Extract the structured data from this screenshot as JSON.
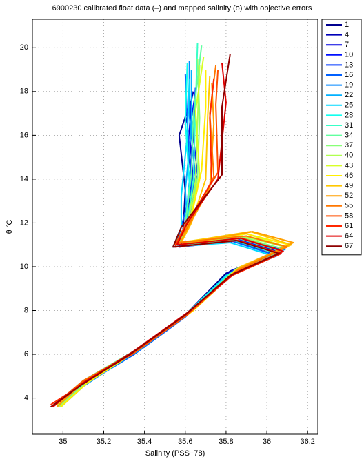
{
  "chart_data": {
    "type": "line",
    "title": "6900230 calibrated float data (–) and mapped salinity (o) with objective errors",
    "x_label": "Salinity (PSS−78)",
    "y_label": "θ ˚C",
    "xlim": [
      34.85,
      36.25
    ],
    "ylim": [
      2.35,
      21.3
    ],
    "xticks": [
      35,
      35.2,
      35.4,
      35.6,
      35.8,
      36,
      36.2
    ],
    "yticks": [
      4,
      6,
      8,
      10,
      12,
      14,
      16,
      18,
      20
    ],
    "grid": true,
    "legend": "outside-right",
    "series": [
      {
        "name": "1",
        "color": "#00008f",
        "x": [
          34.98,
          35.1,
          35.34,
          35.6,
          35.8,
          36.02,
          35.83,
          35.58,
          35.59,
          35.6,
          35.57,
          35.62
        ],
        "values": [
          3.7,
          4.7,
          6.0,
          7.8,
          9.7,
          10.6,
          11.2,
          11.0,
          11.8,
          13.5,
          16.0,
          17.4
        ]
      },
      {
        "name": "4",
        "color": "#0000b8",
        "x": [
          34.99,
          35.11,
          35.35,
          35.62,
          35.82,
          36.06,
          35.86,
          35.56,
          35.61,
          35.63,
          35.6,
          35.64
        ],
        "values": [
          3.6,
          4.8,
          6.1,
          7.9,
          9.8,
          10.7,
          11.3,
          11.0,
          11.9,
          14.0,
          16.5,
          18.0
        ]
      },
      {
        "name": "7",
        "color": "#0000e0",
        "x": [
          34.97,
          35.09,
          35.33,
          35.61,
          35.85,
          36.08,
          35.88,
          35.57,
          35.6,
          35.64,
          35.62,
          35.63
        ],
        "values": [
          3.7,
          4.6,
          6.0,
          7.8,
          9.9,
          10.8,
          11.2,
          10.9,
          11.8,
          13.7,
          16.2,
          17.6
        ]
      },
      {
        "name": "10",
        "color": "#0010ff",
        "x": [
          34.98,
          35.1,
          35.36,
          35.63,
          35.84,
          36.07,
          35.85,
          35.55,
          35.62,
          35.66,
          35.63,
          35.66
        ],
        "values": [
          3.6,
          4.7,
          6.2,
          8.0,
          9.7,
          10.6,
          11.3,
          11.1,
          12.0,
          14.2,
          16.8,
          18.5
        ]
      },
      {
        "name": "13",
        "color": "#0038ff",
        "x": [
          34.96,
          35.1,
          35.34,
          35.62,
          35.83,
          36.04,
          35.84,
          35.56,
          35.6,
          35.62,
          35.64,
          35.65
        ],
        "values": [
          3.7,
          4.8,
          6.1,
          7.9,
          9.8,
          10.7,
          11.2,
          11.0,
          11.9,
          13.9,
          16.3,
          18.2
        ]
      },
      {
        "name": "16",
        "color": "#0060ff",
        "x": [
          34.99,
          35.12,
          35.35,
          35.6,
          35.81,
          36.05,
          35.82,
          35.55,
          35.58,
          35.63,
          35.61,
          35.6
        ],
        "values": [
          3.6,
          4.7,
          6.0,
          7.7,
          9.6,
          10.5,
          11.2,
          10.9,
          11.8,
          13.6,
          16.6,
          18.8
        ]
      },
      {
        "name": "19",
        "color": "#0088ff",
        "x": [
          34.98,
          35.11,
          35.37,
          35.64,
          35.86,
          36.09,
          35.87,
          35.56,
          35.6,
          35.65,
          35.62,
          35.62
        ],
        "values": [
          3.7,
          4.6,
          6.2,
          8.1,
          9.9,
          10.8,
          11.3,
          11.0,
          11.9,
          14.1,
          16.9,
          19.4
        ]
      },
      {
        "name": "22",
        "color": "#00b0ff",
        "x": [
          34.97,
          35.1,
          35.36,
          35.62,
          35.84,
          36.06,
          35.86,
          35.57,
          35.61,
          35.6,
          35.63,
          35.63
        ],
        "values": [
          3.6,
          4.8,
          6.1,
          7.9,
          9.7,
          10.6,
          11.2,
          11.1,
          12.0,
          13.5,
          16.4,
          19.0
        ]
      },
      {
        "name": "25",
        "color": "#00d8ff",
        "x": [
          34.98,
          35.12,
          35.34,
          35.6,
          35.8,
          36.03,
          35.82,
          35.54,
          35.58,
          35.58,
          35.61,
          35.62
        ],
        "values": [
          3.7,
          4.7,
          6.0,
          7.8,
          9.6,
          10.5,
          11.1,
          10.9,
          11.8,
          13.2,
          16.0,
          18.6
        ]
      },
      {
        "name": "28",
        "color": "#10ffef",
        "x": [
          34.99,
          35.11,
          35.35,
          35.61,
          35.82,
          36.05,
          35.84,
          35.55,
          35.6,
          35.62,
          35.6,
          35.61
        ],
        "values": [
          3.6,
          4.8,
          6.1,
          7.9,
          9.7,
          10.6,
          11.2,
          11.0,
          11.9,
          13.8,
          16.7,
          19.3
        ]
      },
      {
        "name": "31",
        "color": "#38ffc7",
        "x": [
          34.97,
          35.1,
          35.36,
          35.63,
          35.85,
          36.07,
          35.86,
          35.56,
          35.61,
          35.64,
          35.65,
          35.66
        ],
        "values": [
          3.7,
          4.7,
          6.2,
          8.0,
          9.8,
          10.7,
          11.3,
          11.1,
          12.0,
          14.0,
          17.2,
          20.2
        ]
      },
      {
        "name": "34",
        "color": "#60ff9f",
        "x": [
          34.98,
          35.11,
          35.35,
          35.62,
          35.83,
          36.06,
          35.85,
          35.55,
          35.6,
          35.63,
          35.64,
          35.68
        ],
        "values": [
          3.6,
          4.7,
          6.1,
          7.9,
          9.7,
          10.6,
          11.2,
          11.0,
          11.9,
          14.3,
          17.0,
          20.1
        ]
      },
      {
        "name": "37",
        "color": "#88ff77",
        "x": [
          34.96,
          35.1,
          35.34,
          35.62,
          35.84,
          36.08,
          35.86,
          35.57,
          35.62,
          35.66,
          35.67,
          35.66
        ],
        "values": [
          3.7,
          4.8,
          6.1,
          7.9,
          9.8,
          10.8,
          11.4,
          11.1,
          12.0,
          14.1,
          16.8,
          19.5
        ]
      },
      {
        "name": "40",
        "color": "#b0ff4f",
        "x": [
          34.98,
          35.12,
          35.36,
          35.63,
          35.85,
          36.09,
          35.88,
          35.56,
          35.61,
          35.65,
          35.66,
          35.67
        ],
        "values": [
          3.6,
          4.7,
          6.2,
          8.0,
          9.9,
          10.9,
          11.4,
          11.0,
          11.9,
          13.9,
          16.6,
          19.2
        ]
      },
      {
        "name": "43",
        "color": "#d8ff27",
        "x": [
          34.97,
          35.11,
          35.35,
          35.62,
          35.84,
          36.1,
          35.9,
          35.56,
          35.62,
          35.67,
          35.65,
          35.69
        ],
        "values": [
          3.7,
          4.8,
          6.1,
          7.9,
          9.8,
          10.9,
          11.5,
          11.1,
          12.0,
          14.2,
          17.1,
          19.6
        ]
      },
      {
        "name": "46",
        "color": "#ffef00",
        "x": [
          34.99,
          35.12,
          35.37,
          35.64,
          35.86,
          36.11,
          35.9,
          35.57,
          35.62,
          35.68,
          35.7,
          35.7
        ],
        "values": [
          3.6,
          4.7,
          6.2,
          8.0,
          9.9,
          11.0,
          11.5,
          11.0,
          11.9,
          14.4,
          17.3,
          19.0
        ]
      },
      {
        "name": "49",
        "color": "#ffc700",
        "x": [
          34.98,
          35.11,
          35.36,
          35.63,
          35.87,
          36.12,
          35.92,
          35.58,
          35.63,
          35.7,
          35.71,
          35.72
        ],
        "values": [
          3.7,
          4.8,
          6.2,
          8.0,
          10.0,
          11.0,
          11.6,
          11.1,
          12.0,
          14.0,
          16.9,
          18.7
        ]
      },
      {
        "name": "52",
        "color": "#ff9f00",
        "x": [
          34.97,
          35.1,
          35.35,
          35.62,
          35.86,
          36.13,
          35.93,
          35.57,
          35.62,
          35.72,
          35.74,
          35.73
        ],
        "values": [
          3.6,
          4.7,
          6.1,
          7.9,
          9.9,
          11.1,
          11.6,
          11.0,
          11.9,
          13.6,
          16.5,
          18.4
        ]
      },
      {
        "name": "55",
        "color": "#ff7700",
        "x": [
          34.96,
          35.1,
          35.35,
          35.62,
          35.85,
          36.1,
          35.9,
          35.56,
          35.61,
          35.74,
          35.72,
          35.75
        ],
        "values": [
          3.7,
          4.8,
          6.1,
          7.9,
          9.8,
          10.9,
          11.4,
          11.1,
          11.8,
          14.1,
          17.0,
          19.2
        ]
      },
      {
        "name": "58",
        "color": "#ff4f00",
        "x": [
          34.95,
          35.09,
          35.34,
          35.61,
          35.84,
          36.08,
          35.88,
          35.55,
          35.6,
          35.76,
          35.75,
          35.76
        ],
        "values": [
          3.6,
          4.7,
          6.0,
          7.8,
          9.7,
          10.7,
          11.3,
          11.0,
          11.9,
          14.3,
          17.4,
          19.0
        ]
      },
      {
        "name": "61",
        "color": "#ff2700",
        "x": [
          34.94,
          35.09,
          35.33,
          35.6,
          35.83,
          36.07,
          35.86,
          35.55,
          35.6,
          35.73,
          35.72,
          35.74
        ],
        "values": [
          3.7,
          4.6,
          6.0,
          7.8,
          9.6,
          10.6,
          11.2,
          10.9,
          11.8,
          13.9,
          16.8,
          18.6
        ]
      },
      {
        "name": "64",
        "color": "#e00000",
        "x": [
          34.95,
          35.1,
          35.34,
          35.61,
          35.84,
          36.08,
          35.87,
          35.56,
          35.61,
          35.76,
          35.8,
          35.78
        ],
        "values": [
          3.6,
          4.7,
          6.1,
          7.9,
          9.7,
          10.7,
          11.3,
          11.0,
          12.0,
          14.0,
          17.5,
          19.3
        ]
      },
      {
        "name": "67",
        "color": "#8f0000",
        "x": [
          34.94,
          35.09,
          35.33,
          35.6,
          35.82,
          36.06,
          35.85,
          35.54,
          35.58,
          35.78,
          35.78,
          35.82
        ],
        "values": [
          3.6,
          4.6,
          6.0,
          7.8,
          9.6,
          10.6,
          11.2,
          10.9,
          11.8,
          14.2,
          17.3,
          19.7
        ]
      }
    ]
  }
}
